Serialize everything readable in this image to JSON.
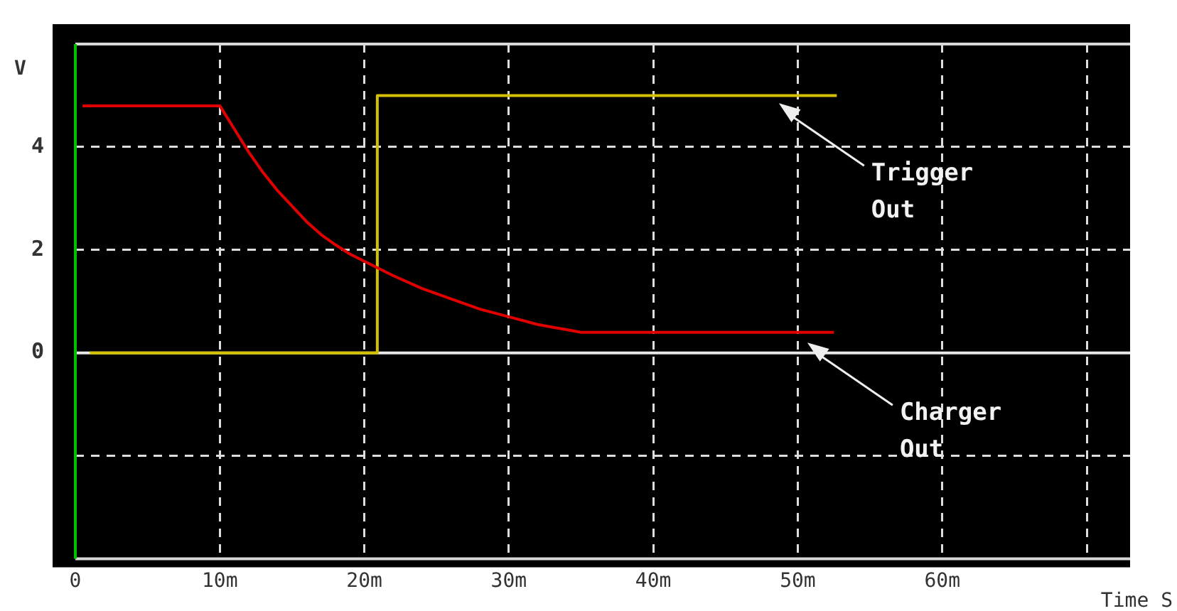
{
  "chart_data": {
    "type": "line",
    "xlabel": "Time S",
    "ylabel": "V",
    "xlim": [
      0,
      73
    ],
    "ylim": [
      -4,
      6
    ],
    "xticks": [
      0,
      {
        "value": 10,
        "label": "10m"
      },
      {
        "value": 20,
        "label": "20m"
      },
      {
        "value": 30,
        "label": "30m"
      },
      {
        "value": 40,
        "label": "40m"
      },
      {
        "value": 50,
        "label": "50m"
      },
      {
        "value": 60,
        "label": "60m"
      },
      {
        "value": 70,
        "label": null
      }
    ],
    "yticks": [
      {
        "value": -2,
        "label": null
      },
      0,
      2,
      4,
      {
        "value": 6,
        "label": null
      }
    ],
    "grid": true,
    "legend": false,
    "marker": "none",
    "line_style": "solid",
    "series": [
      {
        "color": "#e00000",
        "x": [
          0.5,
          10,
          11,
          12,
          13,
          14,
          15,
          16,
          17,
          18,
          19,
          20,
          22,
          24,
          26,
          28,
          30,
          32,
          33,
          34,
          35,
          52.5
        ],
        "values": [
          4.8,
          4.8,
          4.35,
          3.9,
          3.5,
          3.15,
          2.85,
          2.55,
          2.3,
          2.1,
          1.92,
          1.78,
          1.5,
          1.25,
          1.05,
          0.85,
          0.7,
          0.55,
          0.5,
          0.45,
          0.4,
          0.4
        ]
      },
      {
        "color": "#d4c000",
        "x": [
          1,
          20.9,
          20.9,
          52.7
        ],
        "values": [
          0,
          0,
          5,
          5
        ]
      }
    ],
    "ref_lines": [
      {
        "axis": "y",
        "value": 0,
        "color": "#e8e8e8"
      },
      {
        "axis": "x",
        "value": 0,
        "color": "#00c000"
      }
    ],
    "annotations": [
      "Trigger\nOut",
      "Charger\nOut"
    ]
  }
}
